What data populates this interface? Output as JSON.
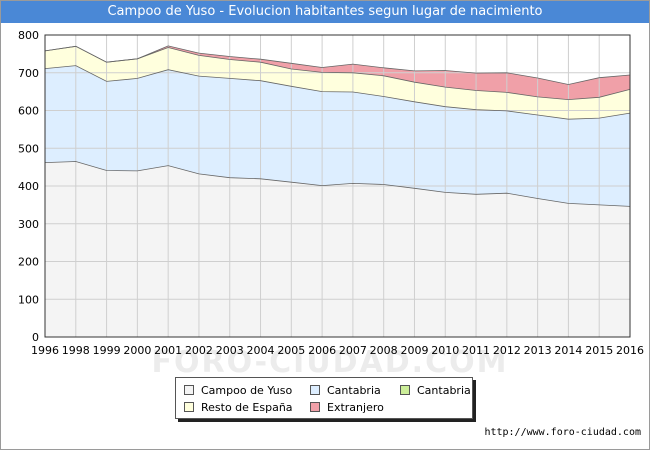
{
  "header": {
    "title": "Campoo de Yuso - Evolucion habitantes segun lugar de nacimiento"
  },
  "footer": {
    "source": "http://www.foro-ciudad.com",
    "watermark": "FORO-CIUDAD.COM"
  },
  "colors": {
    "title_bar": "#4a88d6",
    "campoo": "#f4f4f4",
    "cantabria": "#ddeeff",
    "cantabria_other": "#ccee99",
    "resto": "#ffffdd",
    "extranjero": "#f0a0a8"
  },
  "legend": [
    {
      "label": "Campoo de Yuso",
      "color": "#f4f4f4"
    },
    {
      "label": "Cantabria",
      "color": "#ddeeff"
    },
    {
      "label": "Cantabria",
      "color": "#ccee99"
    },
    {
      "label": "Resto de España",
      "color": "#ffffdd"
    },
    {
      "label": "Extranjero",
      "color": "#f0a0a8"
    }
  ],
  "chart_data": {
    "type": "area",
    "stacked": true,
    "title": "Campoo de Yuso - Evolucion habitantes segun lugar de nacimiento",
    "xlabel": "",
    "ylabel": "",
    "x": [
      1996,
      1998,
      1999,
      2000,
      2001,
      2002,
      2003,
      2004,
      2005,
      2006,
      2007,
      2008,
      2009,
      2010,
      2011,
      2012,
      2013,
      2014,
      2015,
      2016
    ],
    "x_tick_labels": [
      "1996",
      "1998",
      "1999",
      "2000",
      "2001",
      "2002",
      "2003",
      "2004",
      "2005",
      "2006",
      "2007",
      "2008",
      "2009",
      "2010",
      "2011",
      "2012",
      "2013",
      "2014",
      "2015",
      "2016"
    ],
    "y_ticks": [
      0,
      100,
      200,
      300,
      400,
      500,
      600,
      700,
      800
    ],
    "ylim": [
      0,
      800
    ],
    "grid": true,
    "legend_position": "bottom",
    "series": [
      {
        "name": "Campoo de Yuso",
        "color": "#f4f4f4",
        "values": [
          462,
          465,
          441,
          440,
          454,
          432,
          422,
          419,
          410,
          401,
          407,
          404,
          394,
          383,
          378,
          381,
          367,
          354,
          350,
          346
        ]
      },
      {
        "name": "Cantabria",
        "color": "#ddeeff",
        "values": [
          249,
          254,
          236,
          245,
          254,
          259,
          263,
          260,
          254,
          249,
          242,
          233,
          229,
          227,
          224,
          218,
          221,
          223,
          230,
          247
        ]
      },
      {
        "name": "Cantabria",
        "color": "#ccee99",
        "values": [
          0,
          0,
          0,
          0,
          0,
          0,
          0,
          0,
          0,
          0,
          0,
          0,
          0,
          0,
          0,
          0,
          0,
          0,
          0,
          0
        ]
      },
      {
        "name": "Resto de España",
        "color": "#ffffdd",
        "values": [
          47,
          51,
          51,
          52,
          59,
          55,
          50,
          49,
          46,
          51,
          51,
          55,
          52,
          52,
          51,
          49,
          48,
          52,
          55,
          63
        ]
      },
      {
        "name": "Extranjero",
        "color": "#f0a0a8",
        "values": [
          0,
          0,
          0,
          0,
          4,
          6,
          8,
          8,
          15,
          13,
          23,
          21,
          30,
          44,
          46,
          52,
          50,
          40,
          52,
          38
        ]
      }
    ]
  }
}
